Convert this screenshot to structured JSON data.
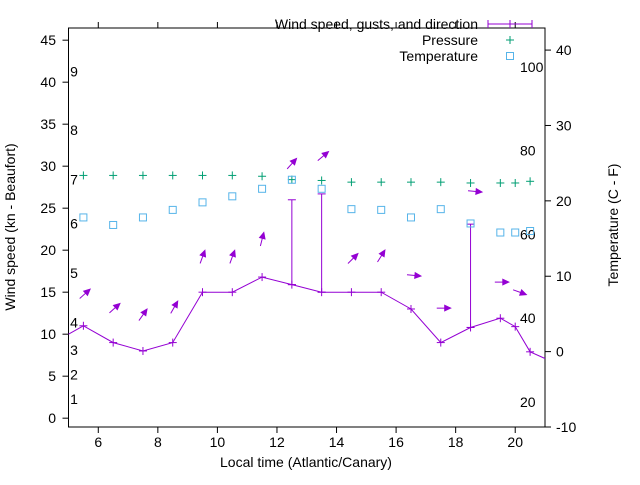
{
  "colors": {
    "wind": "#9400d3",
    "pressure": "#009e73",
    "temperature": "#56b4e9",
    "axis": "#000000",
    "background": "#ffffff"
  },
  "chart_data": {
    "type": "line",
    "title": "",
    "xlabel": "Local time (Atlantic/Canary)",
    "ylabel_left": "Wind speed (kn - Beaufort)",
    "ylabel_right": "Temperature (C - F)",
    "legend_position": "top-right-inside",
    "grid": false,
    "axes": {
      "x": {
        "min": 5,
        "max": 21,
        "ticks": [
          6,
          8,
          10,
          12,
          14,
          16,
          18,
          20
        ]
      },
      "y_left": {
        "min": -1.05,
        "max": 46.45,
        "ticks": [
          0,
          5,
          10,
          15,
          20,
          25,
          30,
          35,
          40,
          45
        ]
      },
      "y_right": {
        "min": -10,
        "max": 42.93,
        "ticks": [
          -10,
          0,
          10,
          20,
          30,
          40
        ]
      }
    },
    "beaufort_scale_labels": [
      {
        "label": "1",
        "kn": 2.3
      },
      {
        "label": "2",
        "kn": 5.2
      },
      {
        "label": "3",
        "kn": 8.1
      },
      {
        "label": "4",
        "kn": 11.4
      },
      {
        "label": "5",
        "kn": 17.3
      },
      {
        "label": "6",
        "kn": 23.2
      },
      {
        "label": "7",
        "kn": 28.4
      },
      {
        "label": "8",
        "kn": 34.3
      },
      {
        "label": "9",
        "kn": 41.3
      }
    ],
    "fahrenheit_scale_labels": [
      {
        "label": "20",
        "f": 20
      },
      {
        "label": "40",
        "f": 40
      },
      {
        "label": "60",
        "f": 60
      },
      {
        "label": "80",
        "f": 80
      },
      {
        "label": "100",
        "f": 100
      }
    ],
    "legend": [
      {
        "label": "Wind speed, gusts, and direction",
        "color": "#9400d3",
        "sample": "errorbar"
      },
      {
        "label": "Pressure",
        "color": "#009e73",
        "sample": "plus"
      },
      {
        "label": "Temperature",
        "color": "#56b4e9",
        "sample": "square"
      }
    ],
    "hours": [
      5.5,
      6.5,
      7.5,
      8.5,
      9.5,
      10.5,
      11.5,
      12.5,
      13.5,
      14.5,
      15.5,
      16.5,
      17.5,
      18.5,
      19.5,
      20.0,
      20.5
    ],
    "wind_speed_kn": [
      11,
      9,
      8,
      9,
      15,
      15,
      16.8,
      15.9,
      15,
      15,
      15,
      13,
      9,
      10.8,
      11.9,
      10.9,
      7.9
    ],
    "wind_gust_kn": [
      11,
      9,
      8,
      9,
      15,
      15,
      16.8,
      26.0,
      26.7,
      15,
      15,
      13,
      9,
      23.1,
      11.9,
      10.9,
      7.9
    ],
    "wind_direction_arrows": [
      {
        "hour": 5.55,
        "kn": 14.8,
        "angle_deg": 42
      },
      {
        "hour": 6.55,
        "kn": 13.1,
        "angle_deg": 42
      },
      {
        "hour": 7.5,
        "kn": 12.3,
        "angle_deg": 55
      },
      {
        "hour": 8.55,
        "kn": 13.2,
        "angle_deg": 60
      },
      {
        "hour": 9.5,
        "kn": 19.2,
        "angle_deg": 70
      },
      {
        "hour": 10.5,
        "kn": 19.2,
        "angle_deg": 70
      },
      {
        "hour": 11.5,
        "kn": 21.3,
        "angle_deg": 76
      },
      {
        "hour": 12.5,
        "kn": 30.3,
        "angle_deg": 48
      },
      {
        "hour": 13.55,
        "kn": 31.2,
        "angle_deg": 40
      },
      {
        "hour": 14.55,
        "kn": 19.0,
        "angle_deg": 45
      },
      {
        "hour": 15.5,
        "kn": 19.3,
        "angle_deg": 58
      },
      {
        "hour": 16.6,
        "kn": 17.0,
        "angle_deg": -5
      },
      {
        "hour": 17.6,
        "kn": 13.1,
        "angle_deg": 0
      },
      {
        "hour": 18.65,
        "kn": 27.0,
        "angle_deg": -5
      },
      {
        "hour": 19.55,
        "kn": 16.2,
        "angle_deg": 0
      },
      {
        "hour": 20.15,
        "kn": 15.0,
        "angle_deg": -20
      }
    ],
    "pressure_values": [
      28.9,
      28.9,
      28.9,
      28.9,
      28.9,
      28.9,
      28.8,
      28.4,
      28.3,
      28.1,
      28.1,
      28.1,
      28.1,
      28.0,
      28.0,
      28.0,
      28.2
    ],
    "temperature_c": [
      17.8,
      16.8,
      17.8,
      18.8,
      19.8,
      20.6,
      21.6,
      22.8,
      21.6,
      18.9,
      18.8,
      17.8,
      18.9,
      17.0,
      15.8,
      15.8,
      16.0
    ],
    "wind_edge_segments": {
      "start": {
        "hour": 5.0,
        "kn": 10.0
      },
      "end": {
        "hour": 21.0,
        "kn": 7.1
      }
    }
  }
}
